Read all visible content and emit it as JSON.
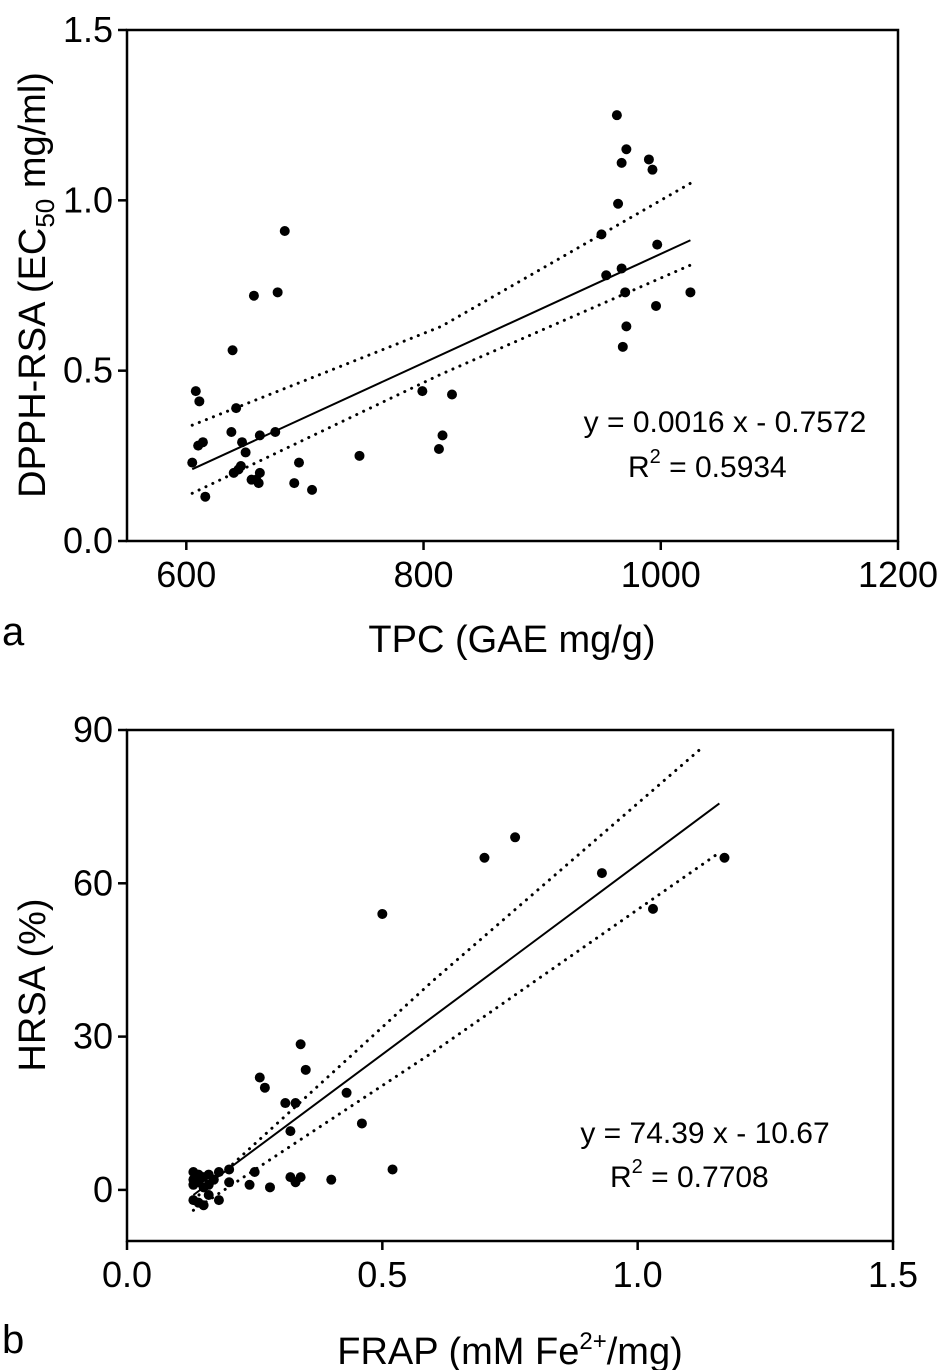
{
  "chart_data": [
    {
      "panel": "a",
      "type": "scatter",
      "xlabel": "TPC (GAE mg/g)",
      "ylabel_main": "DPPH-RSA (EC",
      "ylabel_sub": "50",
      "ylabel_end": " mg/ml)",
      "xlim": [
        550,
        1200
      ],
      "ylim": [
        0.0,
        1.5
      ],
      "xticks": [
        600,
        800,
        1000,
        1200
      ],
      "yticks": [
        0.0,
        0.5,
        1.0,
        1.5
      ],
      "xtick_labels": [
        "600",
        "800",
        "1000",
        "1200"
      ],
      "ytick_labels": [
        "0.0",
        "0.5",
        "1.0",
        "1.5"
      ],
      "grid": false,
      "points": [
        [
          605,
          0.23
        ],
        [
          608,
          0.44
        ],
        [
          610,
          0.28
        ],
        [
          611,
          0.41
        ],
        [
          614,
          0.29
        ],
        [
          616,
          0.13
        ],
        [
          638,
          0.32
        ],
        [
          639,
          0.56
        ],
        [
          640,
          0.2
        ],
        [
          642,
          0.39
        ],
        [
          644,
          0.21
        ],
        [
          646,
          0.22
        ],
        [
          647,
          0.29
        ],
        [
          650,
          0.26
        ],
        [
          655,
          0.18
        ],
        [
          657,
          0.72
        ],
        [
          659,
          0.18
        ],
        [
          661,
          0.17
        ],
        [
          662,
          0.2
        ],
        [
          662,
          0.31
        ],
        [
          675,
          0.32
        ],
        [
          677,
          0.73
        ],
        [
          683,
          0.91
        ],
        [
          691,
          0.17
        ],
        [
          695,
          0.23
        ],
        [
          706,
          0.15
        ],
        [
          746,
          0.25
        ],
        [
          799,
          0.44
        ],
        [
          813,
          0.27
        ],
        [
          816,
          0.31
        ],
        [
          824,
          0.43
        ],
        [
          950,
          0.9
        ],
        [
          954,
          0.78
        ],
        [
          963,
          1.25
        ],
        [
          964,
          0.99
        ],
        [
          967,
          0.8
        ],
        [
          967,
          1.11
        ],
        [
          968,
          0.57
        ],
        [
          970,
          0.73
        ],
        [
          971,
          0.63
        ],
        [
          971,
          1.15
        ],
        [
          990,
          1.12
        ],
        [
          993,
          1.09
        ],
        [
          996,
          0.69
        ],
        [
          997,
          0.87
        ],
        [
          1025,
          0.73
        ]
      ],
      "fit": {
        "slope": 0.0016,
        "intercept": -0.7572,
        "x_range": [
          605,
          1025
        ]
      },
      "band_upper": [
        [
          605,
          0.34
        ],
        [
          815,
          0.63
        ],
        [
          1025,
          1.05
        ]
      ],
      "band_lower": [
        [
          605,
          0.14
        ],
        [
          815,
          0.49
        ],
        [
          1025,
          0.81
        ]
      ],
      "equation": "y = 0.0016 x - 0.7572",
      "r2_label": "R",
      "r2_sup": "2",
      "r2_value": " = 0.5934"
    },
    {
      "panel": "b",
      "type": "scatter",
      "xlabel_main": "FRAP (mM Fe",
      "xlabel_sup": "2+",
      "xlabel_end": "/mg)",
      "ylabel": "HRSA (%)",
      "xlim": [
        0.0,
        1.5
      ],
      "ylim": [
        -10,
        90
      ],
      "xticks": [
        0.0,
        0.5,
        1.0,
        1.5
      ],
      "yticks": [
        0,
        30,
        60,
        90
      ],
      "xtick_labels": [
        "0.0",
        "0.5",
        "1.0",
        "1.5"
      ],
      "ytick_labels": [
        "0",
        "30",
        "60",
        "90"
      ],
      "grid": false,
      "points": [
        [
          0.13,
          3.5
        ],
        [
          0.13,
          2.0
        ],
        [
          0.13,
          1.0
        ],
        [
          0.13,
          -2.0
        ],
        [
          0.14,
          1.5
        ],
        [
          0.14,
          -2.5
        ],
        [
          0.14,
          3.0
        ],
        [
          0.15,
          0.5
        ],
        [
          0.15,
          2.5
        ],
        [
          0.15,
          -3.0
        ],
        [
          0.16,
          1.0
        ],
        [
          0.16,
          3.0
        ],
        [
          0.16,
          -1.0
        ],
        [
          0.17,
          2.0
        ],
        [
          0.18,
          3.5
        ],
        [
          0.18,
          -2.0
        ],
        [
          0.2,
          1.5
        ],
        [
          0.2,
          4.0
        ],
        [
          0.24,
          1.0
        ],
        [
          0.25,
          3.5
        ],
        [
          0.26,
          22.0
        ],
        [
          0.27,
          20.0
        ],
        [
          0.28,
          0.5
        ],
        [
          0.31,
          17.0
        ],
        [
          0.32,
          11.5
        ],
        [
          0.32,
          2.5
        ],
        [
          0.33,
          1.5
        ],
        [
          0.33,
          17.0
        ],
        [
          0.34,
          2.5
        ],
        [
          0.34,
          28.5
        ],
        [
          0.35,
          23.5
        ],
        [
          0.4,
          2.0
        ],
        [
          0.43,
          19.0
        ],
        [
          0.46,
          13.0
        ],
        [
          0.5,
          54.0
        ],
        [
          0.52,
          4.0
        ],
        [
          0.7,
          65.0
        ],
        [
          0.76,
          69.0
        ],
        [
          0.93,
          62.0
        ],
        [
          1.03,
          55.0
        ],
        [
          1.17,
          65.0
        ]
      ],
      "fit": {
        "slope": 74.39,
        "intercept": -10.67,
        "x_range": [
          0.13,
          1.16
        ]
      },
      "band_upper": [
        [
          0.13,
          -2.0
        ],
        [
          0.6,
          41.0
        ],
        [
          1.12,
          86.0
        ]
      ],
      "band_lower": [
        [
          0.13,
          -4.0
        ],
        [
          0.6,
          27.0
        ],
        [
          1.16,
          66.0
        ]
      ],
      "equation": "y = 74.39 x - 10.67",
      "r2_label": "R",
      "r2_sup": "2",
      "r2_value": " = 0.7708"
    }
  ]
}
